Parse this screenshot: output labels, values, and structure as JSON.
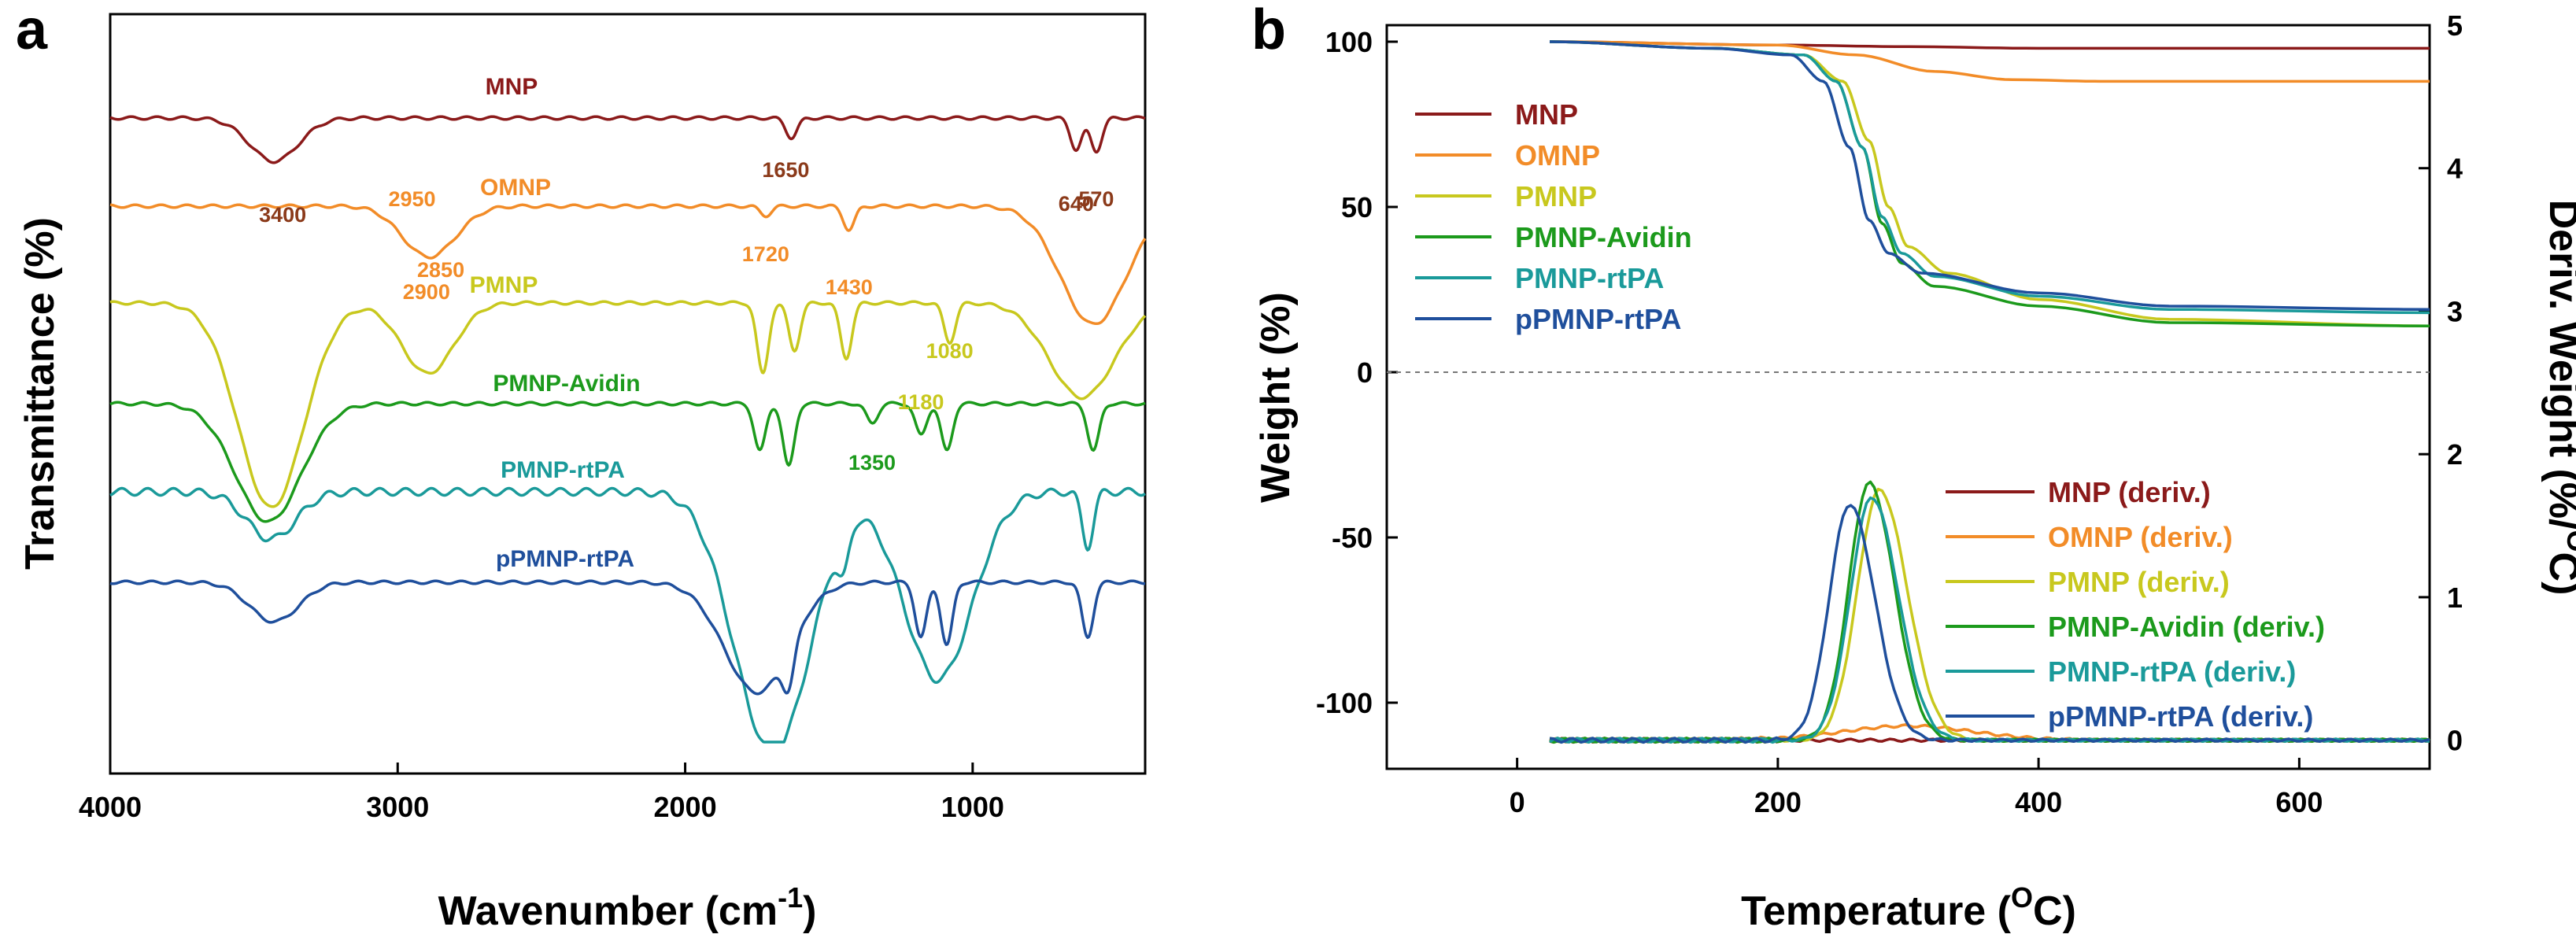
{
  "chart_data": [
    {
      "panel": "a",
      "type": "line",
      "title": "",
      "xlabel": "Wavenumber (cm",
      "xlabel_sup": "-1",
      "xlabel_end": ")",
      "ylabel": "Transmittance (%)",
      "xlim": [
        4000,
        400
      ],
      "x_reversed": true,
      "xticks": [
        4000,
        3000,
        2000,
        1000
      ],
      "series": [
        {
          "name": "MNP",
          "color": "#8b1a1a",
          "peaks": [
            {
              "x": 3430,
              "depth": 55
            },
            {
              "x": 1630,
              "depth": 25
            },
            {
              "x": 640,
              "depth": 40
            },
            {
              "x": 570,
              "depth": 42
            }
          ],
          "labels": [
            {
              "text": "3400",
              "x": 3400
            },
            {
              "text": "1650",
              "x": 1650
            },
            {
              "text": "640",
              "x": 640
            },
            {
              "text": "570",
              "x": 570
            }
          ]
        },
        {
          "name": "OMNP",
          "color": "#f28c28",
          "peaks": [
            {
              "x": 2920,
              "depth": 40
            },
            {
              "x": 2850,
              "depth": 30
            },
            {
              "x": 1720,
              "depth": 12
            },
            {
              "x": 1430,
              "depth": 30
            },
            {
              "x": 580,
              "depth": 150
            }
          ],
          "labels": [
            {
              "text": "2950",
              "x": 2950
            },
            {
              "text": "2900",
              "x": 2900
            },
            {
              "text": "2850",
              "x": 2850
            },
            {
              "text": "1720",
              "x": 1720
            },
            {
              "text": "1430",
              "x": 1430
            }
          ]
        },
        {
          "name": "PMNP",
          "color": "#c8c81e",
          "peaks": [
            {
              "x": 3440,
              "depth": 260
            },
            {
              "x": 2920,
              "depth": 55
            },
            {
              "x": 2860,
              "depth": 40
            },
            {
              "x": 1730,
              "depth": 90
            },
            {
              "x": 1620,
              "depth": 60
            },
            {
              "x": 1440,
              "depth": 70
            },
            {
              "x": 1080,
              "depth": 50
            },
            {
              "x": 620,
              "depth": 120
            }
          ],
          "labels": [
            {
              "text": "1080",
              "x": 1080
            },
            {
              "text": "1180",
              "x": 1180
            }
          ]
        },
        {
          "name": "PMNP-Avidin",
          "color": "#1c9a1c",
          "peaks": [
            {
              "x": 3450,
              "depth": 150
            },
            {
              "x": 1740,
              "depth": 60
            },
            {
              "x": 1640,
              "depth": 80
            },
            {
              "x": 1350,
              "depth": 25
            },
            {
              "x": 1180,
              "depth": 40
            },
            {
              "x": 1090,
              "depth": 60
            },
            {
              "x": 580,
              "depth": 60
            }
          ],
          "labels": [
            {
              "text": "1350",
              "x": 1350
            }
          ]
        },
        {
          "name": "PMNP-rtPA",
          "color": "#1a9a9a",
          "peaks": [
            {
              "x": 3440,
              "depth": 60
            },
            {
              "x": 1760,
              "depth": 180
            },
            {
              "x": 1640,
              "depth": 200
            },
            {
              "x": 1450,
              "depth": 50
            },
            {
              "x": 1160,
              "depth": 110
            },
            {
              "x": 1090,
              "depth": 140
            },
            {
              "x": 600,
              "depth": 70
            }
          ],
          "labels": []
        },
        {
          "name": "pPMNP-rtPA",
          "color": "#1f4f9c",
          "peaks": [
            {
              "x": 3430,
              "depth": 50
            },
            {
              "x": 1750,
              "depth": 140
            },
            {
              "x": 1640,
              "depth": 50
            },
            {
              "x": 1180,
              "depth": 70
            },
            {
              "x": 1090,
              "depth": 80
            },
            {
              "x": 600,
              "depth": 70
            }
          ],
          "labels": []
        }
      ]
    },
    {
      "panel": "b",
      "type": "line",
      "title": "",
      "xlabel": "Temperature (",
      "xlabel_sup": "O",
      "xlabel_end": "C)",
      "ylabel": "Weight (%)",
      "y2label": "Deriv. Weight (%/",
      "y2label_sup": "O",
      "y2label_end": "C)",
      "xlim": [
        -100,
        700
      ],
      "ylim": [
        -120,
        105
      ],
      "y2lim": [
        -0.2,
        5
      ],
      "xticks": [
        0,
        200,
        400,
        600
      ],
      "yticks": [
        100,
        50,
        0,
        -50,
        -100
      ],
      "y2ticks": [
        0,
        1,
        2,
        3,
        4,
        5
      ],
      "zero_line": "dashed",
      "legend_weight_position": "top-left",
      "legend_deriv_position": "lower-right",
      "weight_series": [
        {
          "name": "MNP",
          "color": "#8b1a1a",
          "t": [
            25,
            200,
            300,
            400,
            700
          ],
          "w": [
            100,
            99,
            98.5,
            98,
            98
          ]
        },
        {
          "name": "OMNP",
          "color": "#f28c28",
          "t": [
            25,
            200,
            260,
            320,
            380,
            450,
            700
          ],
          "w": [
            100,
            99,
            96,
            91,
            88.5,
            88,
            88
          ]
        },
        {
          "name": "PMNP",
          "color": "#c8c81e",
          "t": [
            25,
            150,
            220,
            250,
            270,
            285,
            300,
            330,
            400,
            500,
            700
          ],
          "w": [
            100,
            98,
            96,
            88,
            70,
            50,
            38,
            30,
            22,
            16,
            14
          ]
        },
        {
          "name": "PMNP-Avidin",
          "color": "#1c9a1c",
          "t": [
            25,
            150,
            220,
            245,
            265,
            280,
            295,
            320,
            400,
            500,
            700
          ],
          "w": [
            100,
            98,
            96,
            88,
            68,
            45,
            33,
            26,
            20,
            15,
            14
          ]
        },
        {
          "name": "PMNP-rtPA",
          "color": "#1a9a9a",
          "t": [
            25,
            150,
            220,
            245,
            265,
            280,
            295,
            320,
            400,
            500,
            700
          ],
          "w": [
            100,
            98,
            96,
            88,
            68,
            47,
            36,
            29,
            23,
            19,
            18
          ]
        },
        {
          "name": "pPMNP-rtPA",
          "color": "#1f4f9c",
          "t": [
            25,
            150,
            210,
            235,
            255,
            270,
            285,
            310,
            400,
            500,
            700
          ],
          "w": [
            100,
            98,
            96,
            88,
            68,
            46,
            36,
            30,
            24,
            20,
            19
          ]
        }
      ],
      "deriv_series": [
        {
          "name": "MNP (deriv.)",
          "color": "#8b1a1a",
          "peak_t": 300,
          "peak_h": 0.0,
          "width": 60
        },
        {
          "name": "OMNP (deriv.)",
          "color": "#f28c28",
          "peak_t": 300,
          "peak_h": 0.1,
          "width": 70
        },
        {
          "name": "PMNP (deriv.)",
          "color": "#c8c81e",
          "peak_t": 278,
          "peak_h": 1.75,
          "width": 24
        },
        {
          "name": "PMNP-Avidin (deriv.)",
          "color": "#1c9a1c",
          "peak_t": 270,
          "peak_h": 1.8,
          "width": 22
        },
        {
          "name": "PMNP-rtPA (deriv.)",
          "color": "#1a9a9a",
          "peak_t": 272,
          "peak_h": 1.7,
          "width": 23
        },
        {
          "name": "pPMNP-rtPA (deriv.)",
          "color": "#1f4f9c",
          "peak_t": 255,
          "peak_h": 1.65,
          "width": 22
        }
      ]
    }
  ]
}
